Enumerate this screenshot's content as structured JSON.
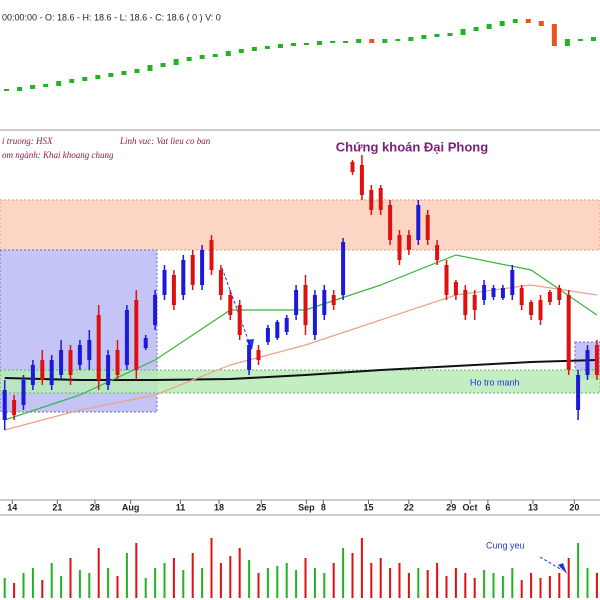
{
  "chart_data": [
    {
      "type": "candles",
      "header": "00:00:00 - O: 18.6 - H: 18.6 - L: 18.6 - C: 18.6 ( 0 ) V: 0",
      "ylim": [
        0,
        100
      ],
      "up_color": "#22b322",
      "down_color": "#e8551e",
      "values": [
        10,
        12,
        14,
        15,
        18,
        20,
        22,
        24,
        26,
        28,
        30,
        34,
        36,
        40,
        42,
        44,
        45,
        48,
        50,
        52,
        53,
        55,
        56,
        56,
        58,
        58,
        58,
        60,
        58,
        60,
        60,
        62,
        64,
        65,
        66,
        70,
        72,
        75,
        78,
        80,
        78,
        75,
        55,
        60,
        60,
        62
      ]
    },
    {
      "type": "candlestick",
      "title": "Chứng khoán Đại Phong",
      "notes": [
        "i truong: HSX",
        "Linh vuc: Vat lieu co ban",
        "om ngành: Khai khoang chung"
      ],
      "zone_label": "Ho tro manh",
      "ylim": [
        0,
        370
      ],
      "up_color": "#1a1ad8",
      "down_color": "#e01010",
      "open": [
        80,
        100,
        95,
        115,
        140,
        115,
        125,
        150,
        135,
        140,
        185,
        115,
        150,
        135,
        200,
        152,
        175,
        205,
        225,
        205,
        245,
        215,
        260,
        230,
        205,
        195,
        130,
        150,
        158,
        162,
        168,
        185,
        215,
        165,
        185,
        205,
        205,
        338,
        335,
        310,
        312,
        295,
        265,
        265,
        260,
        285,
        255,
        235,
        218,
        210,
        205,
        200,
        203,
        202,
        205,
        212,
        198,
        200,
        208,
        212,
        205,
        90,
        125,
        155
      ],
      "high": [
        120,
        105,
        125,
        140,
        150,
        145,
        160,
        155,
        160,
        170,
        195,
        150,
        160,
        195,
        210,
        165,
        210,
        235,
        230,
        245,
        250,
        255,
        265,
        235,
        210,
        200,
        160,
        155,
        175,
        180,
        185,
        215,
        225,
        210,
        215,
        210,
        262,
        340,
        345,
        315,
        315,
        300,
        270,
        270,
        300,
        290,
        260,
        240,
        220,
        215,
        210,
        220,
        215,
        215,
        235,
        215,
        200,
        205,
        210,
        215,
        210,
        130,
        155,
        160
      ],
      "low": [
        70,
        80,
        90,
        110,
        115,
        110,
        120,
        115,
        130,
        130,
        110,
        110,
        120,
        130,
        120,
        150,
        170,
        200,
        190,
        200,
        210,
        210,
        225,
        200,
        180,
        160,
        125,
        135,
        155,
        160,
        165,
        180,
        165,
        160,
        180,
        190,
        200,
        325,
        300,
        285,
        285,
        255,
        235,
        245,
        255,
        255,
        235,
        200,
        200,
        180,
        180,
        195,
        200,
        200,
        200,
        190,
        180,
        175,
        195,
        195,
        125,
        80,
        120,
        120
      ],
      "close": [
        110,
        85,
        120,
        135,
        120,
        140,
        150,
        125,
        155,
        160,
        120,
        145,
        125,
        190,
        130,
        162,
        205,
        230,
        195,
        240,
        215,
        250,
        230,
        205,
        185,
        165,
        155,
        140,
        172,
        178,
        182,
        210,
        175,
        205,
        210,
        195,
        258,
        328,
        305,
        290,
        290,
        260,
        240,
        250,
        295,
        260,
        240,
        205,
        205,
        185,
        190,
        215,
        212,
        212,
        230,
        195,
        185,
        180,
        198,
        200,
        130,
        125,
        150,
        125
      ],
      "xticks": [
        {
          "value": 0.8,
          "label": "14"
        },
        {
          "value": 5.6,
          "label": "21"
        },
        {
          "value": 9.6,
          "label": "28"
        },
        {
          "value": 13.4,
          "label": "Aug"
        },
        {
          "value": 18.7,
          "label": "11"
        },
        {
          "value": 22.8,
          "label": "18"
        },
        {
          "value": 27.3,
          "label": "25"
        },
        {
          "value": 32.1,
          "label": "Sep"
        },
        {
          "value": 33.9,
          "label": "8"
        },
        {
          "value": 38.7,
          "label": "15"
        },
        {
          "value": 43.0,
          "label": "22"
        },
        {
          "value": 47.5,
          "label": "29"
        },
        {
          "value": 49.5,
          "label": "Oct"
        },
        {
          "value": 51.4,
          "label": "6"
        },
        {
          "value": 56.2,
          "label": "13"
        },
        {
          "value": 60.6,
          "label": "20"
        }
      ],
      "lines": [
        {
          "color": "#111111",
          "x": [
            0,
            8,
            16,
            24,
            32,
            40,
            48,
            56,
            63
          ],
          "values": [
            122,
            120,
            120,
            121,
            125,
            130,
            134,
            138,
            140
          ]
        },
        {
          "color": "#3cb43c",
          "x": [
            0,
            8,
            16,
            24,
            32,
            40,
            48,
            56,
            63
          ],
          "values": [
            80,
            105,
            140,
            190,
            190,
            215,
            245,
            230,
            185
          ]
        },
        {
          "color": "#f0a088",
          "x": [
            0,
            8,
            16,
            24,
            32,
            40,
            48,
            56,
            63
          ],
          "values": [
            70,
            90,
            105,
            135,
            155,
            180,
            205,
            215,
            205
          ]
        }
      ]
    },
    {
      "type": "bar",
      "annotation": "Cung yeu",
      "ylim": [
        0,
        80
      ],
      "up_color": "#22b322",
      "down_color": "#e01010",
      "values": [
        20,
        15,
        25,
        30,
        18,
        35,
        22,
        40,
        28,
        25,
        50,
        30,
        22,
        45,
        55,
        20,
        30,
        35,
        40,
        28,
        45,
        30,
        60,
        35,
        42,
        50,
        38,
        25,
        30,
        32,
        35,
        28,
        40,
        30,
        25,
        35,
        50,
        45,
        60,
        35,
        40,
        30,
        35,
        25,
        30,
        28,
        35,
        22,
        30,
        25,
        20,
        28,
        25,
        22,
        30,
        18,
        25,
        20,
        22,
        25,
        40,
        55,
        30,
        25
      ]
    }
  ]
}
